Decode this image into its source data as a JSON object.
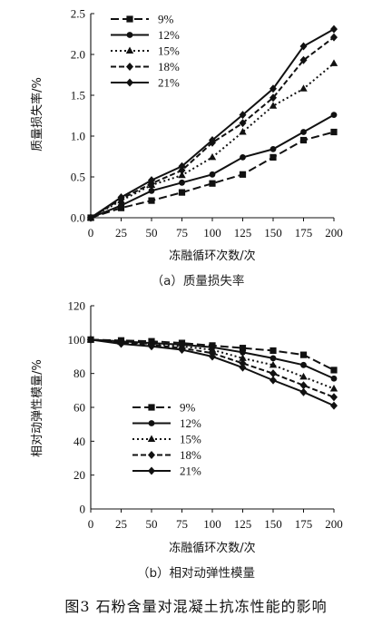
{
  "figure_caption": "图3  石粉含量对混凝土抗冻性能的影响",
  "chart_data": [
    {
      "type": "line",
      "caption": "（a）质量损失率",
      "xlabel": "冻融循环次数/次",
      "ylabel": "质量损失率/%",
      "x": [
        0,
        25,
        50,
        75,
        100,
        125,
        150,
        175,
        200
      ],
      "x_ticks": [
        "0",
        "25",
        "50",
        "75",
        "100",
        "125",
        "150",
        "175",
        "200"
      ],
      "ylim": [
        0,
        2.5
      ],
      "y_ticks": [
        "0.0",
        "0.5",
        "1.0",
        "1.5",
        "2.0",
        "2.5"
      ],
      "legend_position": "top-left",
      "series": [
        {
          "name": "9%",
          "marker": "square",
          "dash": "long-dash",
          "values": [
            0,
            0.12,
            0.21,
            0.31,
            0.42,
            0.53,
            0.74,
            0.95,
            1.05
          ]
        },
        {
          "name": "12%",
          "marker": "circle",
          "dash": "solid",
          "values": [
            0,
            0.15,
            0.33,
            0.43,
            0.53,
            0.74,
            0.84,
            1.05,
            1.26
          ]
        },
        {
          "name": "15%",
          "marker": "triangle",
          "dash": "dotted",
          "values": [
            0,
            0.21,
            0.4,
            0.52,
            0.74,
            1.05,
            1.37,
            1.58,
            1.89
          ]
        },
        {
          "name": "18%",
          "marker": "diamond",
          "dash": "dash",
          "values": [
            0,
            0.23,
            0.42,
            0.58,
            0.92,
            1.16,
            1.47,
            1.93,
            2.21
          ]
        },
        {
          "name": "21%",
          "marker": "diamond",
          "dash": "solid",
          "values": [
            0,
            0.25,
            0.46,
            0.63,
            0.95,
            1.26,
            1.58,
            2.1,
            2.31
          ]
        }
      ]
    },
    {
      "type": "line",
      "caption": "（b）相对动弹性模量",
      "xlabel": "冻融循环次数/次",
      "ylabel": "相对动弹性模量/%",
      "x": [
        0,
        25,
        50,
        75,
        100,
        125,
        150,
        175,
        200
      ],
      "x_ticks": [
        "0",
        "25",
        "50",
        "75",
        "100",
        "125",
        "150",
        "175",
        "200"
      ],
      "ylim": [
        0,
        120
      ],
      "y_ticks": [
        "0",
        "20",
        "40",
        "60",
        "80",
        "100",
        "120"
      ],
      "legend_position": "bottom-left",
      "series": [
        {
          "name": "9%",
          "marker": "square",
          "dash": "long-dash",
          "values": [
            100,
            99.5,
            99,
            98,
            96.5,
            95,
            93.5,
            91,
            82
          ]
        },
        {
          "name": "12%",
          "marker": "circle",
          "dash": "solid",
          "values": [
            100,
            99,
            98,
            97,
            95.5,
            92.5,
            89,
            85,
            77
          ]
        },
        {
          "name": "15%",
          "marker": "triangle",
          "dash": "dotted",
          "values": [
            100,
            98.5,
            97.5,
            96,
            94,
            89,
            85,
            78,
            71
          ]
        },
        {
          "name": "18%",
          "marker": "diamond",
          "dash": "dash",
          "values": [
            100,
            98,
            97,
            95,
            92,
            86,
            80,
            73,
            66
          ]
        },
        {
          "name": "21%",
          "marker": "diamond",
          "dash": "solid",
          "values": [
            100,
            97.5,
            96,
            94,
            90,
            83.5,
            76,
            69,
            61
          ]
        }
      ]
    }
  ]
}
